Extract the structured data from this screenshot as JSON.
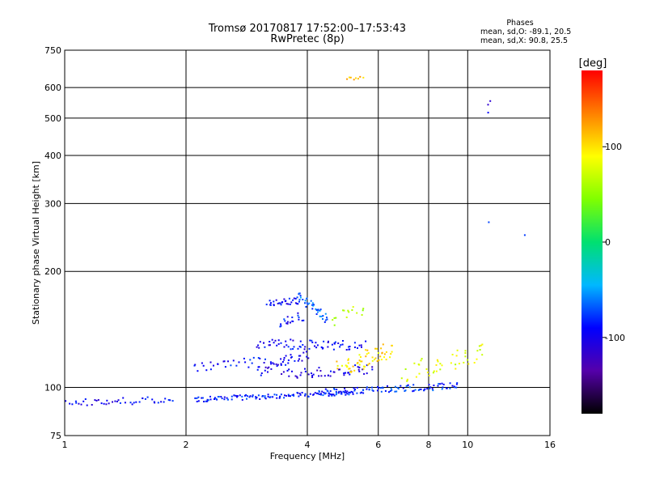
{
  "chart_data": {
    "type": "scatter",
    "title": "Tromsø 20170817 17:52:00–17:53:43",
    "subtitle": "RwPretec (8p)",
    "xlabel": "Frequency [MHz]",
    "ylabel": "Stationary phase Virtual Height [km]",
    "x_scale": "log",
    "y_scale": "log",
    "xlim": [
      1,
      16
    ],
    "ylim": [
      75,
      750
    ],
    "x_ticks": [
      1,
      2,
      4,
      6,
      8,
      10,
      16
    ],
    "x_tick_labels": [
      "1",
      "2",
      "4",
      "6",
      "8",
      "10",
      "16"
    ],
    "y_ticks": [
      75,
      100,
      200,
      300,
      400,
      500,
      600,
      750
    ],
    "y_tick_labels": [
      "75",
      "100",
      "200",
      "300",
      "400",
      "500",
      "600",
      "750"
    ],
    "grid": true,
    "phases_text": [
      "Phases",
      "mean, sd,O: -89.1, 20.5",
      "mean, sd,X: 90.8, 25.5"
    ],
    "colorbar": {
      "label": "[deg]",
      "range": [
        -180,
        180
      ],
      "ticks": [
        100,
        0,
        -100
      ],
      "tick_labels": [
        "100",
        "0",
        "-100"
      ]
    },
    "traces": [
      {
        "f": [
          1.0,
          1.85
        ],
        "h": [
          91,
          93
        ],
        "phase": -95,
        "n": 46,
        "spread": 0.02
      },
      {
        "f": [
          2.1,
          5.2
        ],
        "h": [
          93,
          97
        ],
        "phase": -85,
        "n": 120,
        "spread": 0.015
      },
      {
        "f": [
          4.3,
          9.5
        ],
        "h": [
          97,
          101
        ],
        "phase": -80,
        "n": 100,
        "spread": 0.02
      },
      {
        "f": [
          2.1,
          3.2
        ],
        "h": [
          112,
          117
        ],
        "phase": -90,
        "n": 30,
        "spread": 0.03
      },
      {
        "f": [
          3.0,
          4.0
        ],
        "h": [
          110,
          122
        ],
        "phase": -100,
        "n": 40,
        "spread": 0.03
      },
      {
        "f": [
          3.0,
          5.5
        ],
        "h": [
          130,
          128
        ],
        "phase": -95,
        "n": 70,
        "spread": 0.03
      },
      {
        "f": [
          3.5,
          5.8
        ],
        "h": [
          108,
          112
        ],
        "phase": -100,
        "n": 50,
        "spread": 0.03
      },
      {
        "f": [
          3.2,
          3.8
        ],
        "h": [
          165,
          168
        ],
        "phase": -95,
        "n": 30,
        "spread": 0.02
      },
      {
        "f": [
          3.4,
          3.9
        ],
        "h": [
          148,
          152
        ],
        "phase": -90,
        "n": 20,
        "spread": 0.03
      },
      {
        "f": [
          3.8,
          4.5
        ],
        "h": [
          175,
          150
        ],
        "phase": -65,
        "n": 40,
        "spread": 0.03
      },
      {
        "f": [
          4.6,
          5.5
        ],
        "h": [
          150,
          160
        ],
        "phase": 60,
        "n": 15,
        "spread": 0.04
      },
      {
        "f": [
          4.8,
          6.5
        ],
        "h": [
          112,
          125
        ],
        "phase": 100,
        "n": 60,
        "spread": 0.05
      },
      {
        "f": [
          7.0,
          11.0
        ],
        "h": [
          108,
          125
        ],
        "phase": 80,
        "n": 45,
        "spread": 0.06
      },
      {
        "f": [
          5.0,
          5.5
        ],
        "h": [
          630,
          640
        ],
        "phase": 110,
        "n": 8,
        "spread": 0.01
      },
      {
        "f": [
          11.3,
          11.3
        ],
        "h": [
          510,
          560
        ],
        "phase": -110,
        "n": 3,
        "spread": 0.02
      },
      {
        "f": [
          11.3,
          13.8
        ],
        "h": [
          270,
          250
        ],
        "phase": -90,
        "n": 2,
        "spread": 0.01
      }
    ]
  }
}
